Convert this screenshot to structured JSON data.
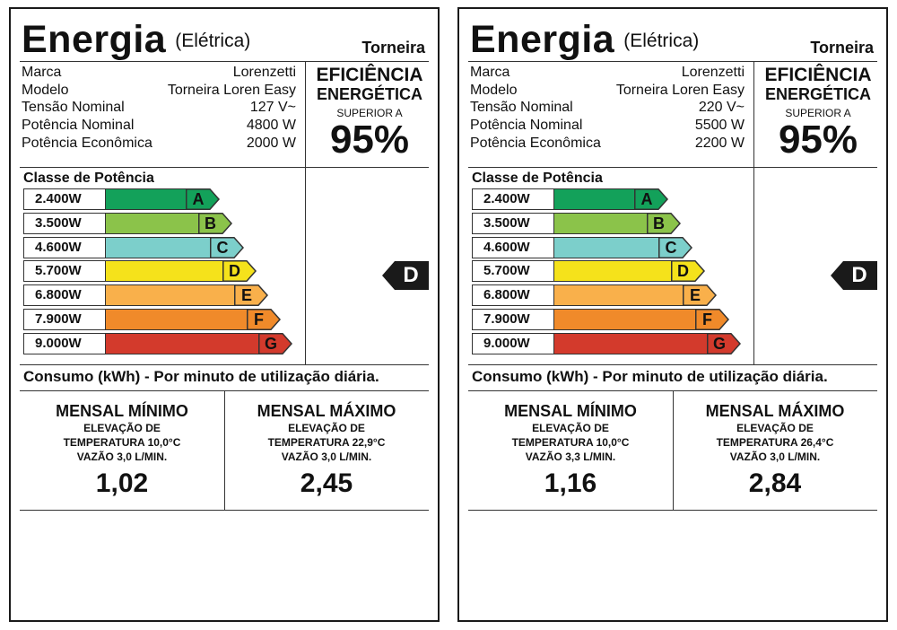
{
  "labels": [
    {
      "title": "Energia",
      "subtitle": "(Elétrica)",
      "product": "Torneira",
      "specs": [
        {
          "label": "Marca",
          "value": "Lorenzetti"
        },
        {
          "label": "Modelo",
          "value": "Torneira Loren Easy"
        },
        {
          "label": "Tensão Nominal",
          "value": "127 V~"
        },
        {
          "label": "Potência Nominal",
          "value": "4800 W"
        },
        {
          "label": "Potência Econômica",
          "value": "2000 W"
        }
      ],
      "efficiency": {
        "line1": "EFICIÊNCIA",
        "line2": "ENERGÉTICA",
        "line3": "SUPERIOR A",
        "value": "95%"
      },
      "class_title": "Classe de Potência",
      "classes": [
        {
          "power": "2.400W",
          "letter": "A",
          "color": "#13a15a"
        },
        {
          "power": "3.500W",
          "letter": "B",
          "color": "#8bc34a"
        },
        {
          "power": "4.600W",
          "letter": "C",
          "color": "#7ccfcb"
        },
        {
          "power": "5.700W",
          "letter": "D",
          "color": "#f5e21b"
        },
        {
          "power": "6.800W",
          "letter": "E",
          "color": "#f9b04b"
        },
        {
          "power": "7.900W",
          "letter": "F",
          "color": "#f08a2a"
        },
        {
          "power": "9.000W",
          "letter": "G",
          "color": "#d33a2c"
        }
      ],
      "rating": "D",
      "consumption_title": "Consumo (kWh) - Por minuto de utilização diária.",
      "monthly_min": {
        "title": "MENSAL MÍNIMO",
        "line1": "ELEVAÇÃO DE",
        "line2": "TEMPERATURA 10,0°C",
        "line3": "VAZÃO 3,0 L/MIN.",
        "value": "1,02"
      },
      "monthly_max": {
        "title": "MENSAL MÁXIMO",
        "line1": "ELEVAÇÃO DE",
        "line2": "TEMPERATURA 22,9°C",
        "line3": "VAZÃO 3,0 L/MIN.",
        "value": "2,45"
      }
    },
    {
      "title": "Energia",
      "subtitle": "(Elétrica)",
      "product": "Torneira",
      "specs": [
        {
          "label": "Marca",
          "value": "Lorenzetti"
        },
        {
          "label": "Modelo",
          "value": "Torneira Loren Easy"
        },
        {
          "label": "Tensão Nominal",
          "value": "220 V~"
        },
        {
          "label": "Potência Nominal",
          "value": "5500 W"
        },
        {
          "label": "Potência Econômica",
          "value": "2200 W"
        }
      ],
      "efficiency": {
        "line1": "EFICIÊNCIA",
        "line2": "ENERGÉTICA",
        "line3": "SUPERIOR A",
        "value": "95%"
      },
      "class_title": "Classe de Potência",
      "classes": [
        {
          "power": "2.400W",
          "letter": "A",
          "color": "#13a15a"
        },
        {
          "power": "3.500W",
          "letter": "B",
          "color": "#8bc34a"
        },
        {
          "power": "4.600W",
          "letter": "C",
          "color": "#7ccfcb"
        },
        {
          "power": "5.700W",
          "letter": "D",
          "color": "#f5e21b"
        },
        {
          "power": "6.800W",
          "letter": "E",
          "color": "#f9b04b"
        },
        {
          "power": "7.900W",
          "letter": "F",
          "color": "#f08a2a"
        },
        {
          "power": "9.000W",
          "letter": "G",
          "color": "#d33a2c"
        }
      ],
      "rating": "D",
      "consumption_title": "Consumo (kWh) - Por minuto de utilização diária.",
      "monthly_min": {
        "title": "MENSAL MÍNIMO",
        "line1": "ELEVAÇÃO DE",
        "line2": "TEMPERATURA 10,0°C",
        "line3": "VAZÃO 3,3 L/MIN.",
        "value": "1,16"
      },
      "monthly_max": {
        "title": "MENSAL MÁXIMO",
        "line1": "ELEVAÇÃO DE",
        "line2": "TEMPERATURA 26,4°C",
        "line3": "VAZÃO 3,0 L/MIN.",
        "value": "2,84"
      }
    }
  ]
}
